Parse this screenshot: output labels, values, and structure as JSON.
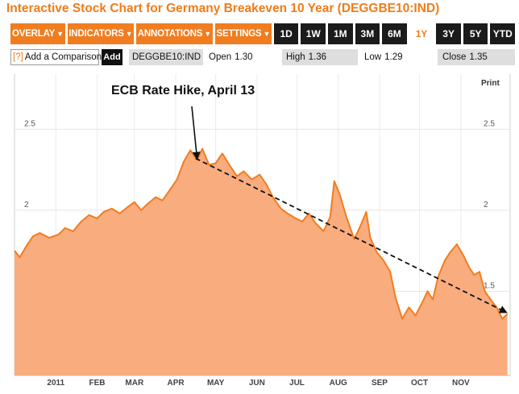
{
  "title": "Interactive Stock Chart for Germany Breakeven 10 Year (DEGGBE10:IND)",
  "toolbar": {
    "menus": [
      {
        "label": "OVERLAY",
        "arrow": "▼"
      },
      {
        "label": "INDICATORS",
        "arrow": "▼"
      },
      {
        "label": "ANNOTATIONS",
        "arrow": "▼"
      },
      {
        "label": "SETTINGS",
        "arrow": "▼"
      }
    ],
    "ranges": [
      "1D",
      "1W",
      "1M",
      "3M",
      "6M",
      "1Y",
      "3Y",
      "5Y",
      "YTD"
    ],
    "active_range": "1Y"
  },
  "quote": {
    "compare_prefix": "[?]",
    "compare_label": "Add a Comparison",
    "add_label": "Add",
    "ticker": "DEGGBE10:IND",
    "open_label": "Open",
    "open_value": "1.30",
    "high_label": "High",
    "high_value": "1.36",
    "low_label": "Low",
    "low_value": "1.29",
    "close_label": "Close",
    "close_value": "1.35"
  },
  "print_label": "Print",
  "colors": {
    "accent": "#f07d1f",
    "area_fill": "#f9ac7e",
    "line": "#f07d1f",
    "toolbar_dark": "#1b1b1b"
  },
  "chart_data": {
    "type": "area",
    "title": "",
    "xlabel": "",
    "ylabel": "",
    "x_ticks": [
      "2011",
      "FEB",
      "MAR",
      "APR",
      "MAY",
      "JUN",
      "JUL",
      "AUG",
      "SEP",
      "OCT",
      "NOV"
    ],
    "y_ticks": [
      "1.5",
      "2",
      "2.5"
    ],
    "ylim": [
      0.98,
      2.84
    ],
    "x_domain": [
      "2010-12-01",
      "2011-12-08"
    ],
    "grid": true,
    "series": [
      {
        "name": "",
        "points": [
          [
            "2010-12-01",
            1.75
          ],
          [
            "2010-12-05",
            1.71
          ],
          [
            "2010-12-10",
            1.78
          ],
          [
            "2010-12-15",
            1.84
          ],
          [
            "2010-12-20",
            1.86
          ],
          [
            "2010-12-27",
            1.83
          ],
          [
            "2011-01-03",
            1.85
          ],
          [
            "2011-01-08",
            1.89
          ],
          [
            "2011-01-14",
            1.87
          ],
          [
            "2011-01-20",
            1.93
          ],
          [
            "2011-01-26",
            1.97
          ],
          [
            "2011-02-01",
            1.95
          ],
          [
            "2011-02-06",
            1.99
          ],
          [
            "2011-02-12",
            2.01
          ],
          [
            "2011-02-18",
            1.98
          ],
          [
            "2011-02-24",
            2.02
          ],
          [
            "2011-03-01",
            2.05
          ],
          [
            "2011-03-06",
            2.0
          ],
          [
            "2011-03-11",
            2.04
          ],
          [
            "2011-03-17",
            2.08
          ],
          [
            "2011-03-22",
            2.06
          ],
          [
            "2011-03-28",
            2.13
          ],
          [
            "2011-04-02",
            2.19
          ],
          [
            "2011-04-07",
            2.3
          ],
          [
            "2011-04-12",
            2.37
          ],
          [
            "2011-04-17",
            2.31
          ],
          [
            "2011-04-21",
            2.38
          ],
          [
            "2011-04-26",
            2.28
          ],
          [
            "2011-05-01",
            2.29
          ],
          [
            "2011-05-06",
            2.35
          ],
          [
            "2011-05-12",
            2.27
          ],
          [
            "2011-05-17",
            2.21
          ],
          [
            "2011-05-22",
            2.24
          ],
          [
            "2011-05-28",
            2.19
          ],
          [
            "2011-06-03",
            2.22
          ],
          [
            "2011-06-08",
            2.16
          ],
          [
            "2011-06-13",
            2.08
          ],
          [
            "2011-06-19",
            2.01
          ],
          [
            "2011-06-24",
            1.98
          ],
          [
            "2011-06-30",
            1.95
          ],
          [
            "2011-07-05",
            1.93
          ],
          [
            "2011-07-10",
            1.98
          ],
          [
            "2011-07-15",
            1.92
          ],
          [
            "2011-07-21",
            1.87
          ],
          [
            "2011-07-26",
            1.96
          ],
          [
            "2011-07-29",
            2.18
          ],
          [
            "2011-08-02",
            2.1
          ],
          [
            "2011-08-07",
            1.96
          ],
          [
            "2011-08-13",
            1.82
          ],
          [
            "2011-08-18",
            1.91
          ],
          [
            "2011-08-22",
            1.99
          ],
          [
            "2011-08-25",
            1.83
          ],
          [
            "2011-08-30",
            1.74
          ],
          [
            "2011-09-04",
            1.69
          ],
          [
            "2011-09-09",
            1.62
          ],
          [
            "2011-09-13",
            1.46
          ],
          [
            "2011-09-18",
            1.33
          ],
          [
            "2011-09-23",
            1.4
          ],
          [
            "2011-09-28",
            1.35
          ],
          [
            "2011-10-03",
            1.43
          ],
          [
            "2011-10-07",
            1.5
          ],
          [
            "2011-10-11",
            1.45
          ],
          [
            "2011-10-15",
            1.59
          ],
          [
            "2011-10-20",
            1.69
          ],
          [
            "2011-10-24",
            1.74
          ],
          [
            "2011-10-29",
            1.79
          ],
          [
            "2011-11-03",
            1.72
          ],
          [
            "2011-11-07",
            1.65
          ],
          [
            "2011-11-11",
            1.6
          ],
          [
            "2011-11-15",
            1.62
          ],
          [
            "2011-11-19",
            1.5
          ],
          [
            "2011-11-24",
            1.44
          ],
          [
            "2011-11-28",
            1.4
          ],
          [
            "2011-12-02",
            1.33
          ],
          [
            "2011-12-06",
            1.36
          ]
        ]
      }
    ],
    "trend_line": {
      "from": [
        "2011-04-16",
        2.32
      ],
      "to": [
        "2011-12-05",
        1.37
      ],
      "style": "dashed"
    },
    "annotations": [
      {
        "text": "ECB Rate Hike, April 13",
        "x": "2011-04-17",
        "y": 2.3
      }
    ]
  }
}
